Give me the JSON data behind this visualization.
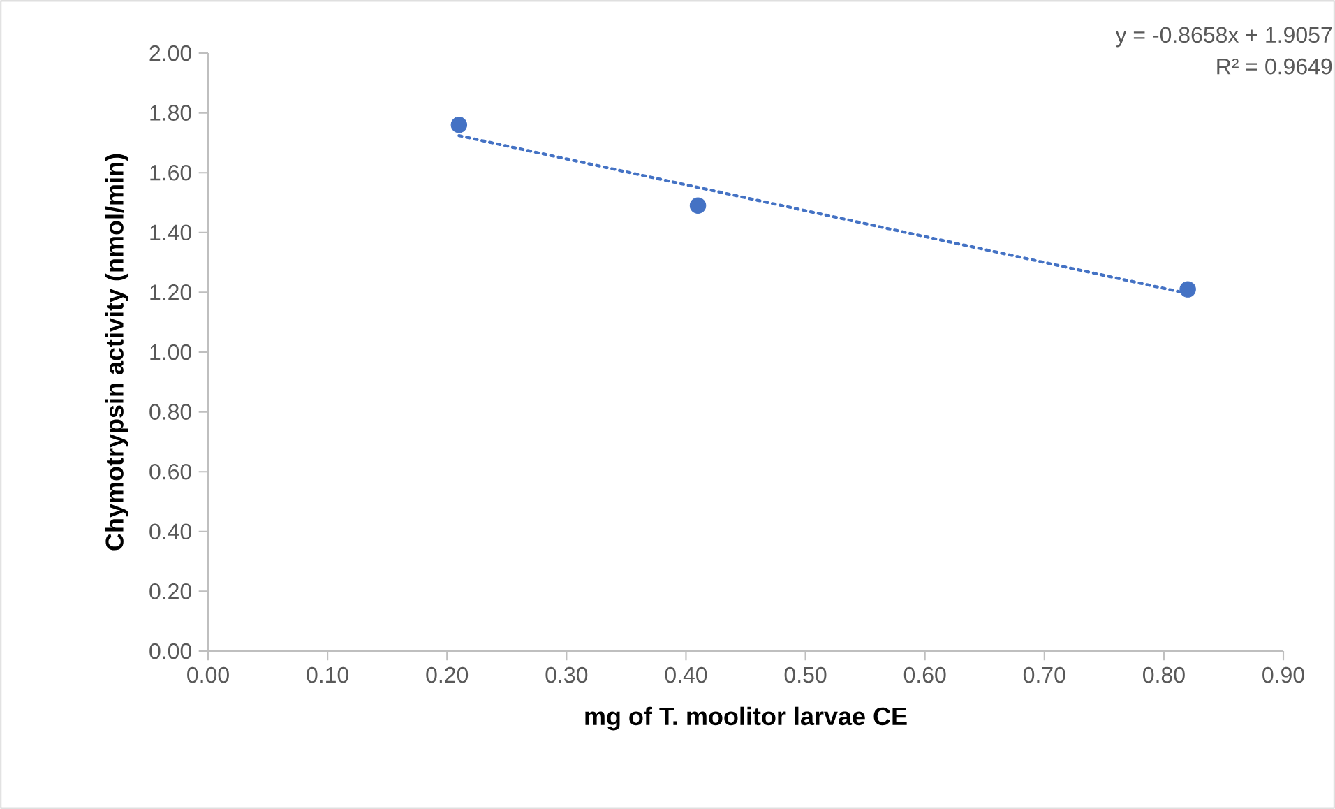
{
  "chart_data": {
    "type": "scatter",
    "xlabel": "mg of T. moolitor larvae CE",
    "ylabel": "Chymotrypsin activity (nmol/min)",
    "annotations": [
      "y = -0.8658x + 1.9057",
      "R² = 0.9649"
    ],
    "xlim": [
      0,
      0.9
    ],
    "xticks": [
      {
        "value": 0,
        "label": "0.00"
      },
      {
        "value": 0.1,
        "label": "0.10"
      },
      {
        "value": 0.2,
        "label": "0.20"
      },
      {
        "value": 0.3,
        "label": "0.30"
      },
      {
        "value": 0.4,
        "label": "0.40"
      },
      {
        "value": 0.5,
        "label": "0.50"
      },
      {
        "value": 0.6,
        "label": "0.60"
      },
      {
        "value": 0.7,
        "label": "0.70"
      },
      {
        "value": 0.8,
        "label": "0.80"
      },
      {
        "value": 0.9,
        "label": "0.90"
      }
    ],
    "ylim": [
      0,
      2
    ],
    "yticks": [
      {
        "value": 0,
        "label": "0.00"
      },
      {
        "value": 0.2,
        "label": "0.20"
      },
      {
        "value": 0.4,
        "label": "0.40"
      },
      {
        "value": 0.6,
        "label": "0.60"
      },
      {
        "value": 0.8,
        "label": "0.80"
      },
      {
        "value": 1,
        "label": "1.00"
      },
      {
        "value": 1.2,
        "label": "1.20"
      },
      {
        "value": 1.4,
        "label": "1.40"
      },
      {
        "value": 1.6,
        "label": "1.60"
      },
      {
        "value": 1.8,
        "label": "1.80"
      },
      {
        "value": 2,
        "label": "2.00"
      }
    ],
    "grid": false,
    "legend": false,
    "series": [
      {
        "color": "#4472c4",
        "marker": "circle",
        "x": [
          0.21,
          0.41,
          0.82
        ],
        "values": [
          1.76,
          1.49,
          1.21
        ]
      },
      {
        "type": "line",
        "color": "#4472c4",
        "marker": "none",
        "line_style": "dotted",
        "x": [
          0.21,
          0.82
        ],
        "values": [
          1.724,
          1.196
        ]
      }
    ]
  }
}
